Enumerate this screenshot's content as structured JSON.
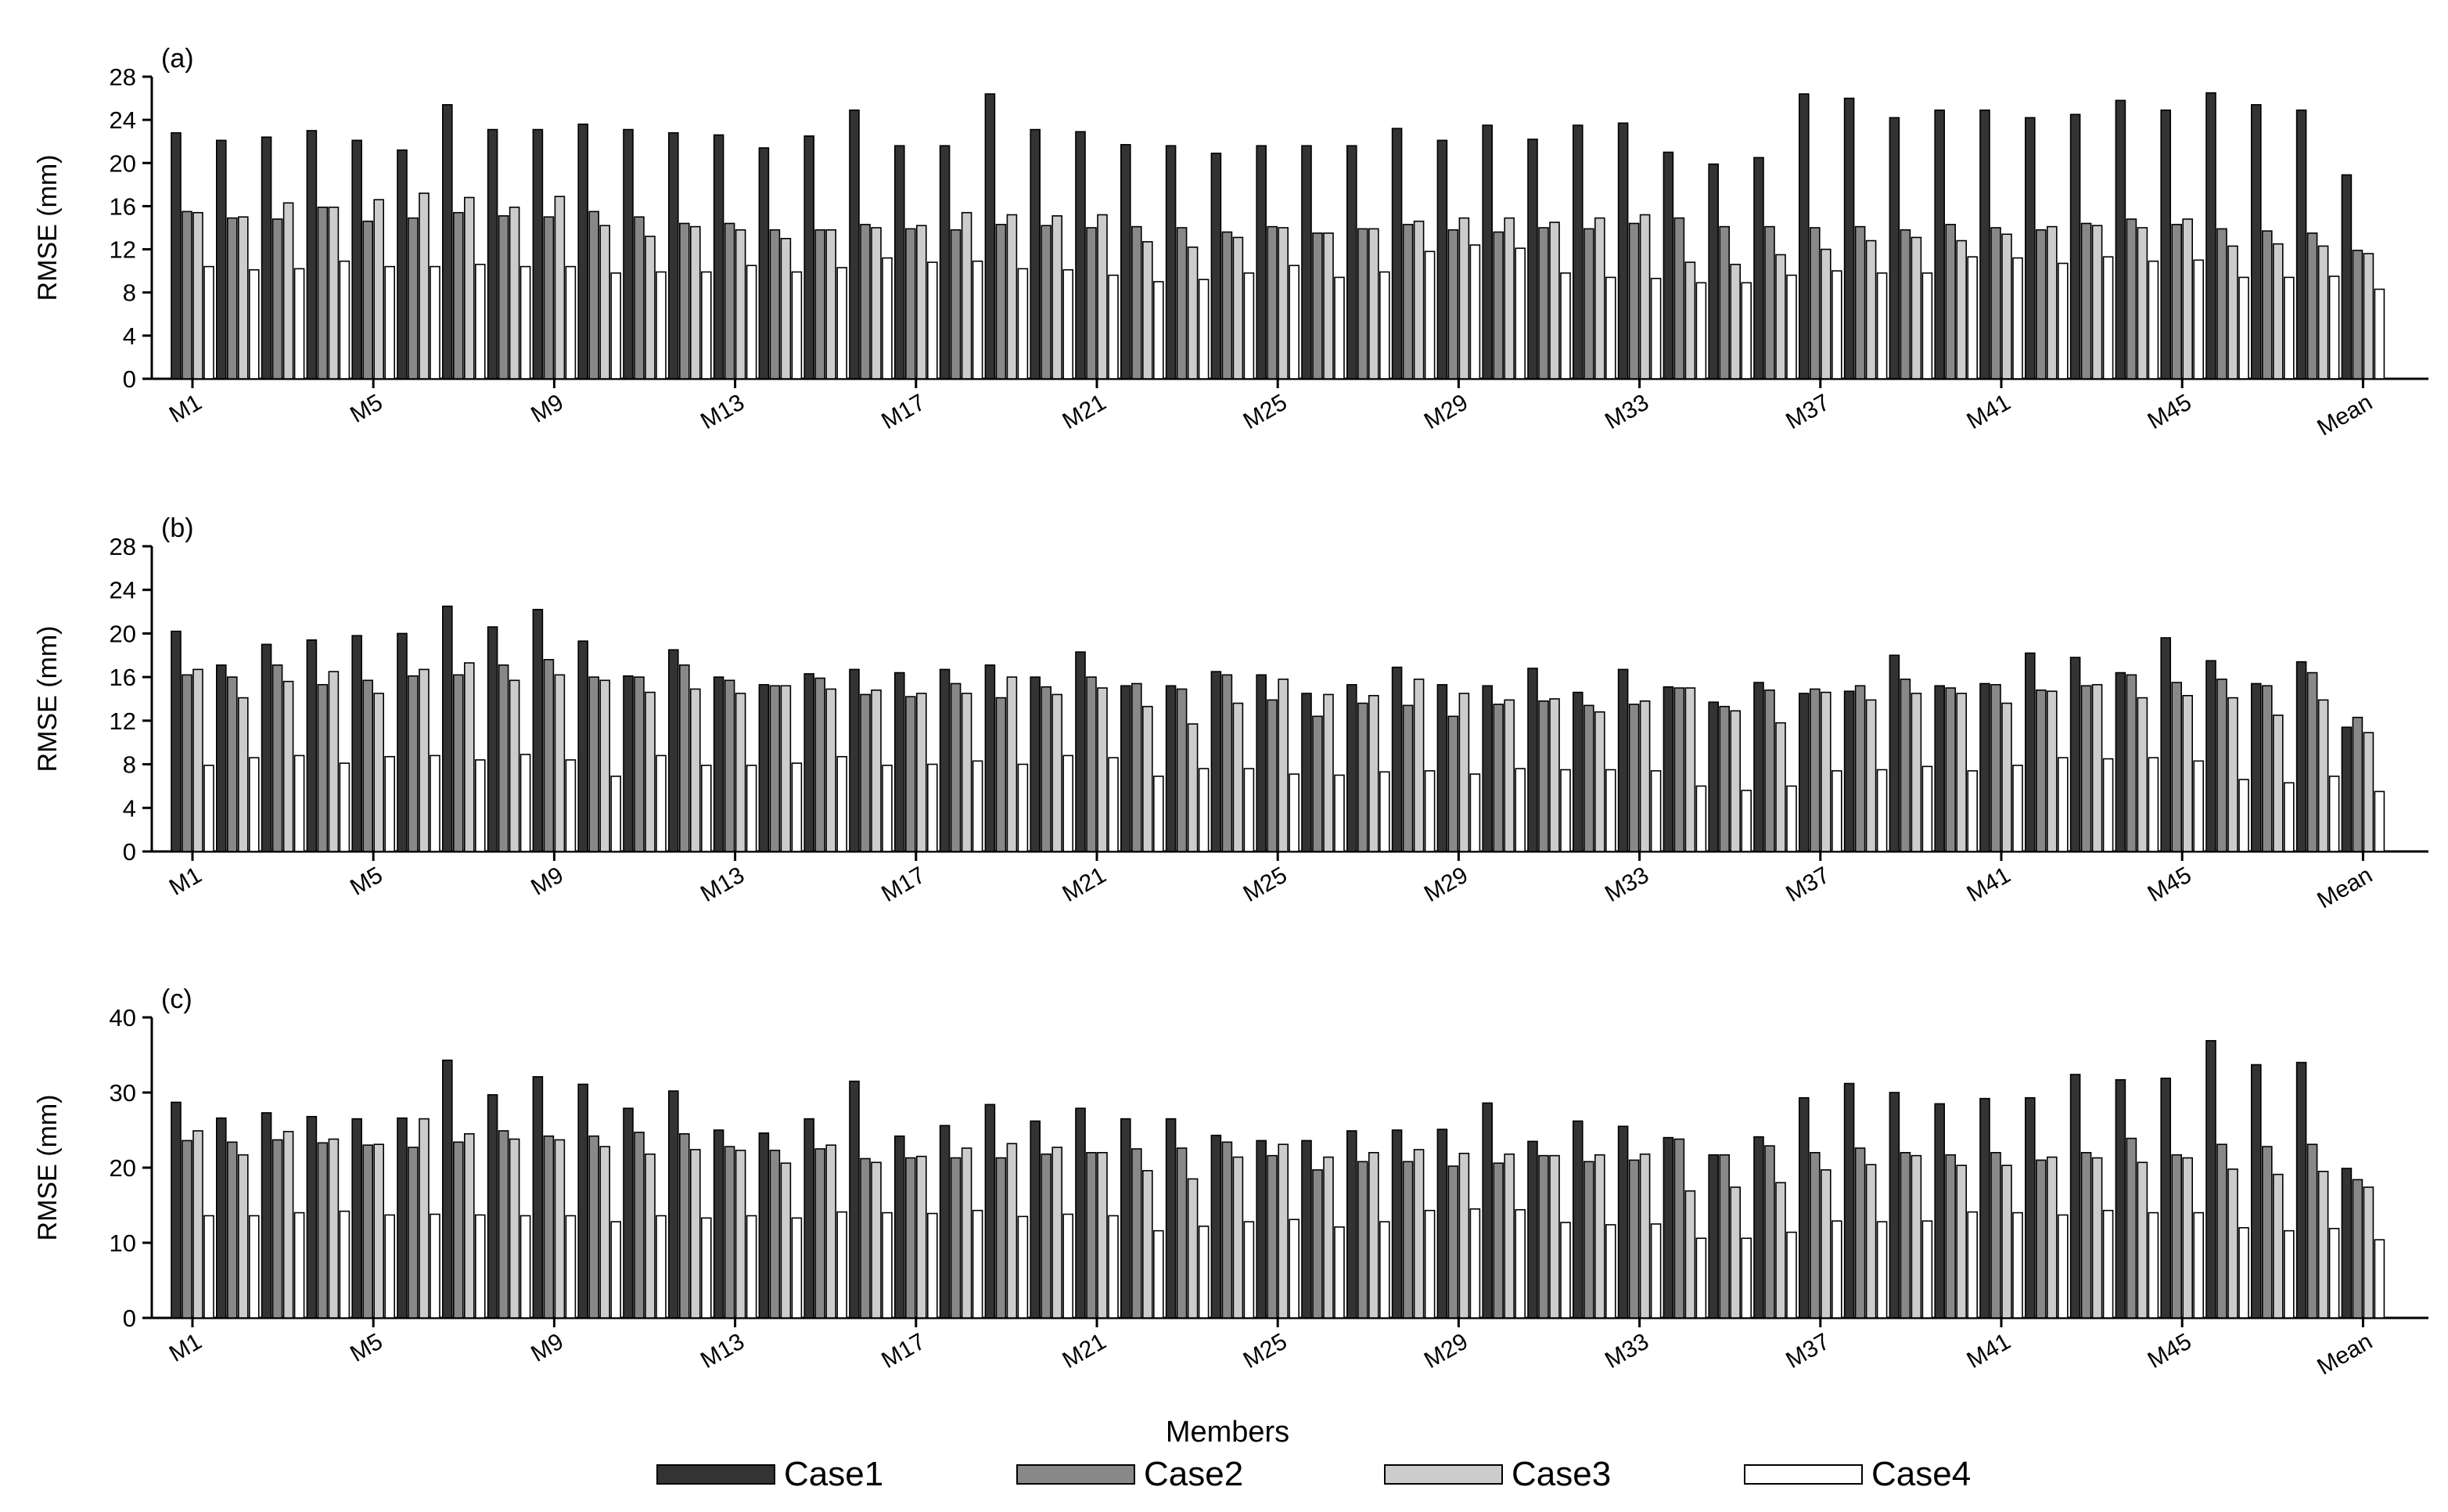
{
  "chart_data": [
    {
      "type": "bar",
      "title": "(a)",
      "y_label": "RMSE (mm)",
      "categories": [
        "M1",
        null,
        null,
        null,
        "M5",
        null,
        null,
        null,
        "M9",
        null,
        null,
        null,
        "M13",
        null,
        null,
        null,
        "M17",
        null,
        null,
        null,
        "M21",
        null,
        null,
        null,
        "M25",
        null,
        null,
        null,
        "M29",
        null,
        null,
        null,
        "M33",
        null,
        null,
        null,
        "M37",
        null,
        null,
        null,
        "M41",
        null,
        null,
        null,
        "M45",
        null,
        null,
        null,
        "Mean"
      ],
      "series": [
        {
          "name": "Case1",
          "color": "#333333",
          "values": [
            22.8,
            22.1,
            22.4,
            23.0,
            22.1,
            21.2,
            25.4,
            23.1,
            23.1,
            23.6,
            23.1,
            22.8,
            22.6,
            21.4,
            22.5,
            24.9,
            21.6,
            21.6,
            26.4,
            23.1,
            22.9,
            21.7,
            21.6,
            20.9,
            21.6,
            21.6,
            21.6,
            23.2,
            22.1,
            23.5,
            22.2,
            23.5,
            23.7,
            21.0,
            19.9,
            20.5,
            26.4,
            26.0,
            24.2,
            24.9,
            24.9,
            24.2,
            24.5,
            25.8,
            24.9,
            26.5,
            25.4,
            24.9,
            18.9
          ]
        },
        {
          "name": "Case2",
          "color": "#888888",
          "values": [
            15.5,
            14.9,
            14.8,
            15.9,
            14.6,
            14.9,
            15.4,
            15.1,
            15.0,
            15.5,
            15.0,
            14.4,
            14.4,
            13.8,
            13.8,
            14.3,
            13.9,
            13.8,
            14.3,
            14.2,
            14.0,
            14.1,
            14.0,
            13.6,
            14.1,
            13.5,
            13.9,
            14.3,
            13.8,
            13.6,
            14.0,
            13.9,
            14.4,
            14.9,
            14.1,
            14.1,
            14.0,
            14.1,
            13.8,
            14.3,
            14.0,
            13.8,
            14.4,
            14.8,
            14.3,
            13.9,
            13.7,
            13.5,
            11.9
          ]
        },
        {
          "name": "Case3",
          "color": "#cccccc",
          "values": [
            15.4,
            15.0,
            16.3,
            15.9,
            16.6,
            17.2,
            16.8,
            15.9,
            16.9,
            14.2,
            13.2,
            14.1,
            13.8,
            13.0,
            13.8,
            14.0,
            14.2,
            15.4,
            15.2,
            15.1,
            15.2,
            12.7,
            12.2,
            13.1,
            14.0,
            13.5,
            13.9,
            14.6,
            14.9,
            14.9,
            14.5,
            14.9,
            15.2,
            10.8,
            10.6,
            11.5,
            12.0,
            12.8,
            13.1,
            12.8,
            13.4,
            14.1,
            14.2,
            14.0,
            14.8,
            12.3,
            12.5,
            12.3,
            11.6
          ]
        },
        {
          "name": "Case4",
          "color": "#ffffff",
          "values": [
            10.4,
            10.1,
            10.2,
            10.9,
            10.4,
            10.4,
            10.6,
            10.4,
            10.4,
            9.8,
            9.9,
            9.9,
            10.5,
            9.9,
            10.3,
            11.2,
            10.8,
            10.9,
            10.2,
            10.1,
            9.6,
            9.0,
            9.2,
            9.8,
            10.5,
            9.4,
            9.9,
            11.8,
            12.4,
            12.1,
            9.8,
            9.4,
            9.3,
            8.9,
            8.9,
            9.6,
            10.0,
            9.8,
            9.8,
            11.3,
            11.2,
            10.7,
            11.3,
            10.9,
            11.0,
            9.4,
            9.4,
            9.5,
            8.3
          ]
        }
      ],
      "ylim": [
        0,
        28
      ],
      "yticks": [
        0,
        4,
        8,
        12,
        16,
        20,
        24,
        28
      ]
    },
    {
      "type": "bar",
      "title": "(b)",
      "y_label": "RMSE (mm)",
      "categories": [
        "M1",
        null,
        null,
        null,
        "M5",
        null,
        null,
        null,
        "M9",
        null,
        null,
        null,
        "M13",
        null,
        null,
        null,
        "M17",
        null,
        null,
        null,
        "M21",
        null,
        null,
        null,
        "M25",
        null,
        null,
        null,
        "M29",
        null,
        null,
        null,
        "M33",
        null,
        null,
        null,
        "M37",
        null,
        null,
        null,
        "M41",
        null,
        null,
        null,
        "M45",
        null,
        null,
        null,
        "Mean"
      ],
      "series": [
        {
          "name": "Case1",
          "color": "#333333",
          "values": [
            20.2,
            17.1,
            19.0,
            19.4,
            19.8,
            20.0,
            22.5,
            20.6,
            22.2,
            19.3,
            16.1,
            18.5,
            16.0,
            15.3,
            16.3,
            16.7,
            16.4,
            16.7,
            17.1,
            16.0,
            18.3,
            15.2,
            15.2,
            16.5,
            16.2,
            14.5,
            15.3,
            16.9,
            15.3,
            15.2,
            16.8,
            14.6,
            16.7,
            15.1,
            13.7,
            15.5,
            14.5,
            14.7,
            18.0,
            15.2,
            15.4,
            18.2,
            17.8,
            16.4,
            19.6,
            17.5,
            15.4,
            17.4,
            11.4
          ]
        },
        {
          "name": "Case2",
          "color": "#888888",
          "values": [
            16.2,
            16.0,
            17.1,
            15.3,
            15.7,
            16.1,
            16.2,
            17.1,
            17.6,
            16.0,
            16.0,
            17.1,
            15.7,
            15.2,
            15.9,
            14.4,
            14.2,
            15.4,
            14.1,
            15.1,
            16.0,
            15.4,
            14.9,
            16.2,
            13.9,
            12.4,
            13.6,
            13.4,
            12.4,
            13.5,
            13.8,
            13.4,
            13.5,
            15.0,
            13.3,
            14.8,
            14.9,
            15.2,
            15.8,
            15.0,
            15.3,
            14.8,
            15.2,
            16.2,
            15.5,
            15.8,
            15.2,
            16.4,
            12.3
          ]
        },
        {
          "name": "Case3",
          "color": "#cccccc",
          "values": [
            16.7,
            14.1,
            15.6,
            16.5,
            14.5,
            16.7,
            17.3,
            15.7,
            16.2,
            15.7,
            14.6,
            14.9,
            14.5,
            15.2,
            14.9,
            14.8,
            14.5,
            14.5,
            16.0,
            14.4,
            15.0,
            13.3,
            11.7,
            13.6,
            15.8,
            14.4,
            14.3,
            15.8,
            14.5,
            13.9,
            14.0,
            12.8,
            13.8,
            15.0,
            12.9,
            11.8,
            14.6,
            13.9,
            14.5,
            14.5,
            13.6,
            14.7,
            15.3,
            14.1,
            14.3,
            14.1,
            12.5,
            13.9,
            10.9
          ]
        },
        {
          "name": "Case4",
          "color": "#ffffff",
          "values": [
            7.9,
            8.6,
            8.8,
            8.1,
            8.7,
            8.8,
            8.4,
            8.9,
            8.4,
            6.9,
            8.8,
            7.9,
            7.9,
            8.1,
            8.7,
            7.9,
            8.0,
            8.3,
            8.0,
            8.8,
            8.6,
            6.9,
            7.6,
            7.6,
            7.1,
            7.0,
            7.3,
            7.4,
            7.1,
            7.6,
            7.5,
            7.5,
            7.4,
            6.0,
            5.6,
            6.0,
            7.4,
            7.5,
            7.8,
            7.4,
            7.9,
            8.6,
            8.5,
            8.6,
            8.3,
            6.6,
            6.3,
            6.9,
            5.5
          ]
        }
      ],
      "ylim": [
        0,
        28
      ],
      "yticks": [
        0,
        4,
        8,
        12,
        16,
        20,
        24,
        28
      ]
    },
    {
      "type": "bar",
      "title": "(c)",
      "y_label": "RMSE (mm)",
      "x_label": "Members",
      "legend": "bottom",
      "categories": [
        "M1",
        null,
        null,
        null,
        "M5",
        null,
        null,
        null,
        "M9",
        null,
        null,
        null,
        "M13",
        null,
        null,
        null,
        "M17",
        null,
        null,
        null,
        "M21",
        null,
        null,
        null,
        "M25",
        null,
        null,
        null,
        "M29",
        null,
        null,
        null,
        "M33",
        null,
        null,
        null,
        "M37",
        null,
        null,
        null,
        "M41",
        null,
        null,
        null,
        "M45",
        null,
        null,
        null,
        "Mean"
      ],
      "series": [
        {
          "name": "Case1",
          "color": "#333333",
          "values": [
            28.7,
            26.6,
            27.3,
            26.8,
            26.5,
            26.6,
            34.3,
            29.7,
            32.1,
            31.1,
            27.9,
            30.2,
            25.0,
            24.6,
            26.5,
            31.5,
            24.2,
            25.6,
            28.4,
            26.2,
            27.9,
            26.5,
            26.5,
            24.3,
            23.6,
            23.6,
            24.9,
            25.0,
            25.1,
            28.6,
            23.5,
            26.2,
            25.5,
            24.0,
            21.7,
            24.1,
            29.3,
            31.2,
            30.0,
            28.5,
            29.2,
            29.3,
            32.4,
            31.7,
            31.9,
            36.9,
            33.7,
            34.0,
            19.9
          ]
        },
        {
          "name": "Case2",
          "color": "#888888",
          "values": [
            23.6,
            23.4,
            23.7,
            23.3,
            23.0,
            22.7,
            23.4,
            24.9,
            24.2,
            24.2,
            24.7,
            24.5,
            22.8,
            22.3,
            22.5,
            21.2,
            21.3,
            21.3,
            21.3,
            21.8,
            22.0,
            22.5,
            22.6,
            23.4,
            21.6,
            19.7,
            20.8,
            20.8,
            20.2,
            20.6,
            21.6,
            20.8,
            21.0,
            23.8,
            21.7,
            22.9,
            22.0,
            22.6,
            22.0,
            21.7,
            22.0,
            21.0,
            22.0,
            23.9,
            21.7,
            23.1,
            22.8,
            23.1,
            18.4
          ]
        },
        {
          "name": "Case3",
          "color": "#cccccc",
          "values": [
            24.9,
            21.7,
            24.8,
            23.8,
            23.1,
            26.5,
            24.5,
            23.8,
            23.7,
            22.8,
            21.8,
            22.4,
            22.3,
            20.6,
            23.0,
            20.7,
            21.5,
            22.6,
            23.2,
            22.7,
            22.0,
            19.6,
            18.5,
            21.4,
            23.1,
            21.4,
            22.0,
            22.4,
            21.9,
            21.8,
            21.6,
            21.7,
            21.8,
            16.9,
            17.4,
            18.0,
            19.7,
            20.4,
            21.6,
            20.3,
            20.3,
            21.4,
            21.3,
            20.7,
            21.3,
            19.8,
            19.1,
            19.5,
            17.4
          ]
        },
        {
          "name": "Case4",
          "color": "#ffffff",
          "values": [
            13.6,
            13.6,
            14.0,
            14.2,
            13.7,
            13.8,
            13.7,
            13.6,
            13.6,
            12.8,
            13.6,
            13.3,
            13.6,
            13.3,
            14.1,
            14.0,
            13.9,
            14.3,
            13.5,
            13.8,
            13.6,
            11.6,
            12.2,
            12.8,
            13.1,
            12.1,
            12.8,
            14.3,
            14.5,
            14.4,
            12.7,
            12.4,
            12.5,
            10.6,
            10.6,
            11.4,
            12.9,
            12.8,
            12.9,
            14.1,
            14.0,
            13.7,
            14.3,
            14.0,
            14.0,
            12.0,
            11.6,
            11.9,
            10.4
          ]
        }
      ],
      "ylim": [
        0,
        40
      ],
      "yticks": [
        0,
        10,
        20,
        30,
        40
      ]
    }
  ]
}
